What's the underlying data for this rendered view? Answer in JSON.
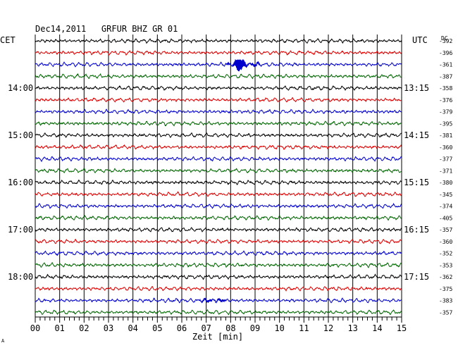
{
  "chart_data": {
    "type": "line",
    "title": "Dec14,2011   GRFUR BHZ GR 01",
    "left_timezone": "CET",
    "right_timezone": "UTC",
    "dc_header": "DC",
    "xlabel": "Zeit [min]",
    "xlim": [
      0,
      15
    ],
    "x_tick_labels": [
      "00",
      "01",
      "02",
      "03",
      "04",
      "05",
      "06",
      "07",
      "08",
      "09",
      "10",
      "11",
      "12",
      "13",
      "14",
      "15"
    ],
    "rows_per_hour": 4,
    "minutes_per_row": 15,
    "row_colors": [
      "#000000",
      "#dd0000",
      "#0000cc",
      "#006600"
    ],
    "left_hour_labels": [
      {
        "row": 4,
        "text": "14:00"
      },
      {
        "row": 8,
        "text": "15:00"
      },
      {
        "row": 12,
        "text": "16:00"
      },
      {
        "row": 16,
        "text": "17:00"
      },
      {
        "row": 20,
        "text": "18:00"
      }
    ],
    "right_hour_labels": [
      {
        "row": 4,
        "text": "13:15"
      },
      {
        "row": 8,
        "text": "14:15"
      },
      {
        "row": 12,
        "text": "15:15"
      },
      {
        "row": 16,
        "text": "16:15"
      },
      {
        "row": 20,
        "text": "17:15"
      }
    ],
    "dc_offsets": [
      -392,
      -396,
      -361,
      -387,
      -358,
      -376,
      -379,
      -395,
      -381,
      -360,
      -377,
      -371,
      -380,
      -345,
      -374,
      -405,
      -357,
      -360,
      -352,
      -353,
      -362,
      -375,
      -383,
      -357
    ],
    "events": [
      {
        "row": 2,
        "minute_start": 7.8,
        "minute_end": 9.2,
        "peak_minute": 8.3,
        "relative_amplitude": 5
      },
      {
        "row": 22,
        "minute_start": 6.7,
        "minute_end": 8.2,
        "peak_minute": 7.2,
        "relative_amplitude": 1.5
      }
    ]
  },
  "footer_mark": "A"
}
